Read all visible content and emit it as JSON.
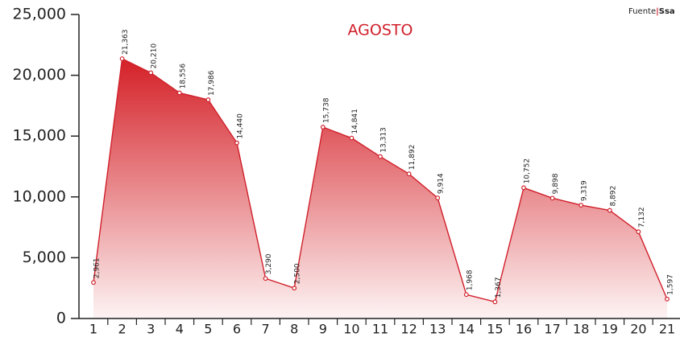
{
  "chart_data": {
    "type": "area",
    "title": "AGOSTO",
    "source_label": "Fuente",
    "source_name": "Ssa",
    "categories": [
      "1",
      "2",
      "3",
      "4",
      "5",
      "6",
      "7",
      "8",
      "9",
      "10",
      "11",
      "12",
      "13",
      "14",
      "15",
      "16",
      "17",
      "18",
      "19",
      "20",
      "21"
    ],
    "values": [
      2961,
      21363,
      20210,
      18556,
      17986,
      14440,
      3290,
      2500,
      15738,
      14841,
      13313,
      11892,
      9914,
      1968,
      1367,
      10752,
      9898,
      9319,
      8892,
      7132,
      1597
    ],
    "value_labels": [
      "2,961",
      "21,363",
      "20,210",
      "18,556",
      "17,986",
      "14,440",
      "3,290",
      "2,500",
      "15,738",
      "14,841",
      "13,313",
      "11,892",
      "9,914",
      "1,968",
      "1,367",
      "10,752",
      "9,898",
      "9,319",
      "8,892",
      "7,132",
      "1,597"
    ],
    "color": "#d0202a",
    "ylim": [
      0,
      25000
    ],
    "yticks": [
      0,
      {
        "value": 5000,
        "label": "5,000"
      },
      {
        "value": 10000,
        "label": "10,000"
      },
      {
        "value": 15000,
        "label": "15,000"
      },
      {
        "value": 20000,
        "label": "20,000"
      },
      {
        "value": 25000,
        "label": "25,000"
      }
    ],
    "grid": false
  }
}
